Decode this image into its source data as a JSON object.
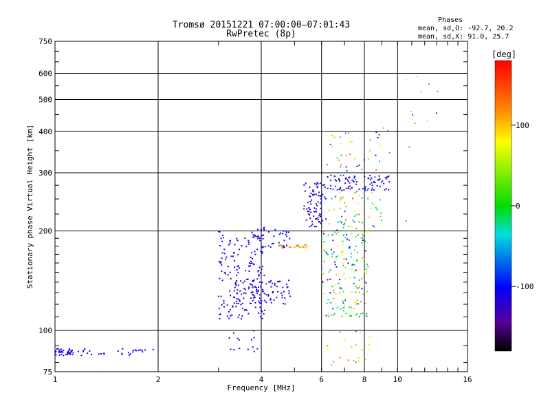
{
  "chart_data": {
    "type": "scatter",
    "title": "Tromsø 20151221 07:00:00–07:01:43",
    "subtitle": "RwPretec (8p)",
    "xlabel": "Frequency [MHz]",
    "ylabel": "Stationary phase Virtual Height [km]",
    "xscale": "log2",
    "yscale": "log",
    "xlim": [
      1,
      16
    ],
    "ylim": [
      75,
      750
    ],
    "grid": true,
    "x_ticks": [
      1,
      2,
      4,
      6,
      8,
      10,
      16
    ],
    "x_tick_labels": [
      "1",
      "2",
      "4",
      "6",
      "8",
      "10",
      "16"
    ],
    "y_ticks": [
      75,
      100,
      200,
      300,
      400,
      500,
      600,
      750
    ],
    "y_tick_labels": [
      "75",
      "100",
      "200",
      "300",
      "400",
      "500",
      "600",
      "750"
    ],
    "stats": {
      "header": "Phases",
      "line_o": "mean, sd,O: -92.7, 20.2",
      "line_x": "mean, sd,X:  91.0, 25.7"
    },
    "colorbar": {
      "label": "[deg]",
      "range": [
        -180,
        180
      ],
      "ticks": [
        100,
        0,
        -100
      ],
      "tick_labels": [
        "100",
        "0",
        "-100"
      ]
    },
    "point_groups": [
      {
        "name": "low",
        "x_range": [
          1.0,
          1.15
        ],
        "y_range": [
          84,
          88
        ],
        "n": 40,
        "phase": -112,
        "spread": 12
      },
      {
        "name": "low2",
        "x_range": [
          1.15,
          1.95
        ],
        "y_range": [
          84,
          88
        ],
        "n": 30,
        "phase": -108,
        "spread": 15
      },
      {
        "name": "Es-lower",
        "x_range": [
          3.0,
          4.1
        ],
        "y_range": [
          108,
          200
        ],
        "n": 170,
        "phase": -110,
        "spread": 14
      },
      {
        "name": "Es-band",
        "x_range": [
          3.3,
          4.9
        ],
        "y_range": [
          120,
          142
        ],
        "n": 90,
        "phase": -118,
        "spread": 10
      },
      {
        "name": "Es-upper",
        "x_range": [
          3.9,
          4.9
        ],
        "y_range": [
          178,
          205
        ],
        "n": 35,
        "phase": -105,
        "spread": 20
      },
      {
        "name": "F-orange",
        "x_range": [
          4.5,
          5.5
        ],
        "y_range": [
          178,
          182
        ],
        "n": 25,
        "phase": 115,
        "spread": 12
      },
      {
        "name": "F-rise",
        "x_range": [
          5.3,
          6.2
        ],
        "y_range": [
          205,
          280
        ],
        "n": 80,
        "phase": -115,
        "spread": 10
      },
      {
        "name": "F-cluster",
        "x_range": [
          6.0,
          8.2
        ],
        "y_range": [
          110,
          200
        ],
        "n": 180,
        "phase": 0,
        "spread": 130
      },
      {
        "name": "F-top",
        "x_range": [
          6.2,
          9.5
        ],
        "y_range": [
          265,
          295
        ],
        "n": 90,
        "phase": -110,
        "spread": 40
      },
      {
        "name": "F-mid",
        "x_range": [
          6.3,
          9.0
        ],
        "y_range": [
          200,
          265
        ],
        "n": 60,
        "phase": 40,
        "spread": 120
      },
      {
        "name": "F-high",
        "x_range": [
          6.2,
          9.5
        ],
        "y_range": [
          300,
          410
        ],
        "n": 40,
        "phase": 0,
        "spread": 140
      },
      {
        "name": "dip",
        "x_range": [
          3.2,
          4.1
        ],
        "y_range": [
          85,
          100
        ],
        "n": 14,
        "phase": -110,
        "spread": 20
      },
      {
        "name": "scatter-low",
        "x_range": [
          6.2,
          8.4
        ],
        "y_range": [
          78,
          100
        ],
        "n": 22,
        "phase": 40,
        "spread": 120
      },
      {
        "name": "scatter-high",
        "x_range": [
          10.5,
          13.2
        ],
        "y_range": [
          205,
          650
        ],
        "n": 12,
        "phase": 0,
        "spread": 150
      }
    ]
  }
}
